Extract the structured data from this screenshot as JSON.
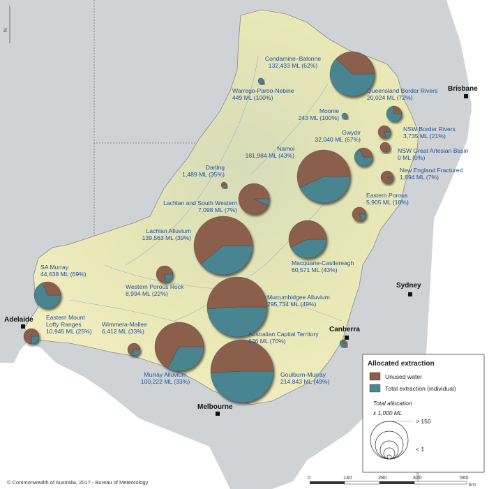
{
  "colors": {
    "unused": "#8b5e4b",
    "extraction": "#4a8591",
    "label": "#1f4e9c",
    "basin": "#efe9b8",
    "outside": "#c9ced1"
  },
  "regions": [
    {
      "id": "condamine",
      "name": "Condamine–Balonne",
      "value": "132,433 ML (62%)",
      "pct": 62
    },
    {
      "id": "warrego",
      "name": "Warrego-Paroo-Nebine",
      "value": "449 ML (100%)",
      "pct": 100
    },
    {
      "id": "qld-border",
      "name": "Queensland Border Rivers",
      "value": "20,024 ML (72%)",
      "pct": 72
    },
    {
      "id": "moonie",
      "name": "Moonie",
      "value": "243 ML (100%)",
      "pct": 100
    },
    {
      "id": "gwydir",
      "name": "Gwydir",
      "value": "32,040 ML (67%)",
      "pct": 67
    },
    {
      "id": "nsw-border",
      "name": "NSW Border Rivers",
      "value": "3,735 ML (21%)",
      "pct": 21
    },
    {
      "id": "nsw-gab",
      "name": "NSW Great Artesian Basin",
      "value": "0 ML (0%)",
      "pct": 0
    },
    {
      "id": "namoi",
      "name": "Namoi",
      "value": "181,984 ML (43%)",
      "pct": 43
    },
    {
      "id": "new-england",
      "name": "New England Fractured",
      "value": "1,894 ML (7%)",
      "pct": 7
    },
    {
      "id": "darling",
      "name": "Darling",
      "value": "1,489 ML (35%)",
      "pct": 35
    },
    {
      "id": "eastern-porous",
      "name": "Eastern Porous",
      "value": "5,905 ML (18%)",
      "pct": 18
    },
    {
      "id": "lachlan-sw",
      "name": "Lachlan and South Western",
      "value": "7,098 ML (7%)",
      "pct": 7
    },
    {
      "id": "lachlan-alluvium",
      "name": "Lachlan Alluvium",
      "value": "139,563 ML (39%)",
      "pct": 39
    },
    {
      "id": "macquarie",
      "name": "Macquarie-Castlereagh",
      "value": "60,571 ML (43%)",
      "pct": 43
    },
    {
      "id": "sa-murray",
      "name": "SA Murray",
      "value": "44,638 ML (69%)",
      "pct": 69
    },
    {
      "id": "western-porous",
      "name": "Western Porous Rock",
      "value": "8,994 ML (22%)",
      "pct": 22
    },
    {
      "id": "murrumbidgee",
      "name": "Murrumbidgee Alluvium",
      "value": "295,734 ML (49%)",
      "pct": 49
    },
    {
      "id": "eastern-mount",
      "name": "Eastern Mount Lofty Ranges",
      "name_lines": [
        "Eastern Mount",
        "Lofty Ranges"
      ],
      "value": "10,945 ML (25%)",
      "pct": 25
    },
    {
      "id": "wimmera",
      "name": "Wimmera-Mallee",
      "value": "6,412 ML (33%)",
      "pct": 33
    },
    {
      "id": "act",
      "name": "Australian Capital Territory",
      "value": "636 ML (70%)",
      "pct": 70
    },
    {
      "id": "murray-alluvium",
      "name": "Murray Alluvium",
      "value": "100,222 ML (33%)",
      "pct": 33
    },
    {
      "id": "goulburn",
      "name": "Goulburn-Murray",
      "value": "214,843 ML (49%)",
      "pct": 49
    }
  ],
  "cities": [
    {
      "id": "brisbane",
      "name": "Brisbane"
    },
    {
      "id": "sydney",
      "name": "Sydney"
    },
    {
      "id": "canberra",
      "name": "Canberra"
    },
    {
      "id": "melbourne",
      "name": "Melbourne"
    },
    {
      "id": "adelaide",
      "name": "Adelaide"
    }
  ],
  "legend": {
    "title": "Allocated extraction",
    "unused_label": "Unused water",
    "extraction_label": "Total extraction (individual)",
    "size_title": "Total allocation",
    "size_unit": "x 1,000 ML",
    "max_label": "> 150",
    "min_label": "< 1"
  },
  "scale_bar": {
    "ticks": [
      "0",
      "140",
      "280",
      "420",
      "560"
    ],
    "unit": "km"
  },
  "north_label": "N",
  "copyright": "© Commonwealth of Australia, 2017 - Bureau of Meteorology"
}
